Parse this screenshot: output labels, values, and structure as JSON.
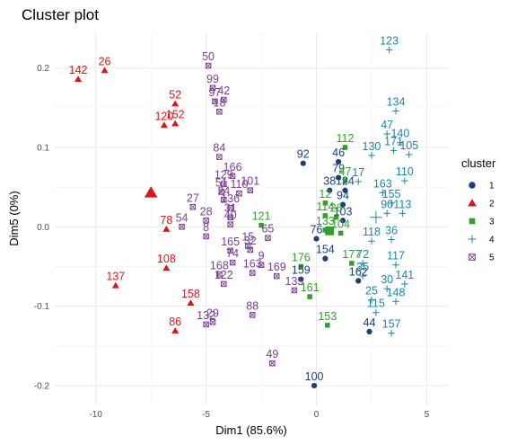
{
  "chart_data": {
    "type": "scatter",
    "title": "Cluster plot",
    "xlabel": "Dim1 (85.6%)",
    "ylabel": "Dim5 (0%)",
    "xlim": [
      -11.9,
      6.0
    ],
    "ylim": [
      -0.225,
      0.245
    ],
    "xticks": [
      -10,
      -5,
      0,
      5
    ],
    "xtick_labels": [
      "-10",
      "-5",
      "0",
      "5"
    ],
    "yticks": [
      -0.2,
      -0.1,
      0.0,
      0.1,
      0.2
    ],
    "ytick_labels": [
      "-0.2",
      "-0.1",
      "0.0",
      "0.1",
      "0.2"
    ],
    "grid": true,
    "legend": {
      "title": "cluster",
      "position": "right",
      "entries": [
        "1",
        "2",
        "3",
        "4",
        "5"
      ]
    },
    "clusters": [
      {
        "name": "1",
        "color": "#1b3f7a",
        "shape": "circle",
        "centroid": null,
        "points": [
          {
            "label": "92",
            "x": -0.6,
            "y": 0.08
          },
          {
            "label": "46",
            "x": 1.0,
            "y": 0.082
          },
          {
            "label": "79",
            "x": 1.0,
            "y": 0.062
          },
          {
            "label": "38",
            "x": 0.6,
            "y": 0.046
          },
          {
            "label": "124",
            "x": 1.3,
            "y": 0.046
          },
          {
            "label": "94",
            "x": 1.2,
            "y": 0.028
          },
          {
            "label": "103",
            "x": 1.2,
            "y": 0.008
          },
          {
            "label": "76",
            "x": 0.0,
            "y": -0.015
          },
          {
            "label": "154",
            "x": 0.4,
            "y": -0.04
          },
          {
            "label": "162",
            "x": 1.9,
            "y": -0.068
          },
          {
            "label": "159",
            "x": -0.7,
            "y": -0.066
          },
          {
            "label": "44",
            "x": 2.4,
            "y": -0.132
          },
          {
            "label": "100",
            "x": -0.1,
            "y": -0.2
          }
        ]
      },
      {
        "name": "2",
        "color": "#d7191c",
        "shape": "triangle",
        "centroid": [
          -7.5,
          0.043
        ],
        "points": [
          {
            "label": "142",
            "x": -10.8,
            "y": 0.186
          },
          {
            "label": "26",
            "x": -9.6,
            "y": 0.197
          },
          {
            "label": "52",
            "x": -6.4,
            "y": 0.155
          },
          {
            "label": "120",
            "x": -6.9,
            "y": 0.128
          },
          {
            "label": "152",
            "x": -6.4,
            "y": 0.13
          },
          {
            "label": "78",
            "x": -6.8,
            "y": -0.003
          },
          {
            "label": "108",
            "x": -6.8,
            "y": -0.052
          },
          {
            "label": "137",
            "x": -9.1,
            "y": -0.074
          },
          {
            "label": "158",
            "x": -5.7,
            "y": -0.096
          },
          {
            "label": "86",
            "x": -6.4,
            "y": -0.131
          }
        ]
      },
      {
        "name": "3",
        "color": "#33a02c",
        "shape": "square",
        "centroid": [
          0.6,
          -0.005
        ],
        "points": [
          {
            "label": "112",
            "x": 1.3,
            "y": 0.1
          },
          {
            "label": "47",
            "x": 1.3,
            "y": 0.058
          },
          {
            "label": "12",
            "x": 0.4,
            "y": 0.03
          },
          {
            "label": "114",
            "x": 0.4,
            "y": 0.014
          },
          {
            "label": "26",
            "x": 0.9,
            "y": 0.012
          },
          {
            "label": "133",
            "x": 0.4,
            "y": -0.004
          },
          {
            "label": "104",
            "x": 1.1,
            "y": -0.008
          },
          {
            "label": "176",
            "x": -0.7,
            "y": -0.05
          },
          {
            "label": "177",
            "x": 1.6,
            "y": -0.046
          },
          {
            "label": "161",
            "x": -0.3,
            "y": -0.088
          },
          {
            "label": "153",
            "x": 0.5,
            "y": -0.124
          },
          {
            "label": "121",
            "x": -2.5,
            "y": 0.002
          }
        ]
      },
      {
        "name": "4",
        "color": "#1f86a6",
        "shape": "asterisk",
        "centroid": [
          2.7,
          0.012
        ],
        "points": [
          {
            "label": "123",
            "x": 3.3,
            "y": 0.223
          },
          {
            "label": "134",
            "x": 3.6,
            "y": 0.146
          },
          {
            "label": "47",
            "x": 3.2,
            "y": 0.117
          },
          {
            "label": "140",
            "x": 3.8,
            "y": 0.106
          },
          {
            "label": "171",
            "x": 3.5,
            "y": 0.096
          },
          {
            "label": "130",
            "x": 2.5,
            "y": 0.09
          },
          {
            "label": "105",
            "x": 4.2,
            "y": 0.091
          },
          {
            "label": "17",
            "x": 1.9,
            "y": 0.057
          },
          {
            "label": "110",
            "x": 4.0,
            "y": 0.058
          },
          {
            "label": "163",
            "x": 3.0,
            "y": 0.043
          },
          {
            "label": "155",
            "x": 3.4,
            "y": 0.03
          },
          {
            "label": "113",
            "x": 3.9,
            "y": 0.017
          },
          {
            "label": "90",
            "x": 3.2,
            "y": 0.017
          },
          {
            "label": "118",
            "x": 2.5,
            "y": -0.018
          },
          {
            "label": "36",
            "x": 3.4,
            "y": -0.016
          },
          {
            "label": "72",
            "x": 2.1,
            "y": -0.046
          },
          {
            "label": "117",
            "x": 3.6,
            "y": -0.048
          },
          {
            "label": "35",
            "x": 2.1,
            "y": -0.062
          },
          {
            "label": "141",
            "x": 4.0,
            "y": -0.072
          },
          {
            "label": "30",
            "x": 3.2,
            "y": -0.078
          },
          {
            "label": "25",
            "x": 2.5,
            "y": -0.092
          },
          {
            "label": "148",
            "x": 3.6,
            "y": -0.094
          },
          {
            "label": "115",
            "x": 2.7,
            "y": -0.108
          },
          {
            "label": "157",
            "x": 3.4,
            "y": -0.134
          }
        ]
      },
      {
        "name": "5",
        "color": "#7b3e94",
        "shape": "boxcross",
        "centroid": null,
        "points": [
          {
            "label": "50",
            "x": -4.9,
            "y": 0.203
          },
          {
            "label": "99",
            "x": -4.7,
            "y": 0.175
          },
          {
            "label": "42",
            "x": -4.2,
            "y": 0.16
          },
          {
            "label": "97",
            "x": -4.6,
            "y": 0.158
          },
          {
            "label": "18",
            "x": -4.4,
            "y": 0.145
          },
          {
            "label": "84",
            "x": -4.4,
            "y": 0.088
          },
          {
            "label": "166",
            "x": -3.8,
            "y": 0.064
          },
          {
            "label": "129",
            "x": -4.2,
            "y": 0.054
          },
          {
            "label": "101",
            "x": -3.0,
            "y": 0.046
          },
          {
            "label": "51",
            "x": -4.3,
            "y": 0.044
          },
          {
            "label": "110",
            "x": -3.5,
            "y": 0.042
          },
          {
            "label": "27",
            "x": -5.6,
            "y": 0.025
          },
          {
            "label": "28",
            "x": -5.0,
            "y": 0.008
          },
          {
            "label": "54",
            "x": -6.1,
            "y": 0.0
          },
          {
            "label": "136",
            "x": -3.9,
            "y": 0.024
          },
          {
            "label": "31",
            "x": -3.9,
            "y": 0.012
          },
          {
            "label": "40",
            "x": -3.9,
            "y": 0.003
          },
          {
            "label": "24",
            "x": -4.2,
            "y": 0.034
          },
          {
            "label": "8",
            "x": -5.0,
            "y": -0.012
          },
          {
            "label": "65",
            "x": -2.2,
            "y": -0.014
          },
          {
            "label": "15",
            "x": -3.1,
            "y": -0.024
          },
          {
            "label": "32",
            "x": -3.0,
            "y": -0.029
          },
          {
            "label": "9",
            "x": -2.5,
            "y": -0.048
          },
          {
            "label": "165",
            "x": -3.9,
            "y": -0.03
          },
          {
            "label": "74",
            "x": -3.8,
            "y": -0.045
          },
          {
            "label": "163",
            "x": -2.9,
            "y": -0.058
          },
          {
            "label": "168",
            "x": -4.4,
            "y": -0.06
          },
          {
            "label": "122",
            "x": -4.2,
            "y": -0.072
          },
          {
            "label": "169",
            "x": -1.8,
            "y": -0.062
          },
          {
            "label": "135",
            "x": -1.0,
            "y": -0.08
          },
          {
            "label": "88",
            "x": -2.9,
            "y": -0.111
          },
          {
            "label": "132",
            "x": -5.0,
            "y": -0.123
          },
          {
            "label": "29",
            "x": -4.7,
            "y": -0.12
          },
          {
            "label": "49",
            "x": -2.0,
            "y": -0.172
          }
        ]
      }
    ]
  }
}
